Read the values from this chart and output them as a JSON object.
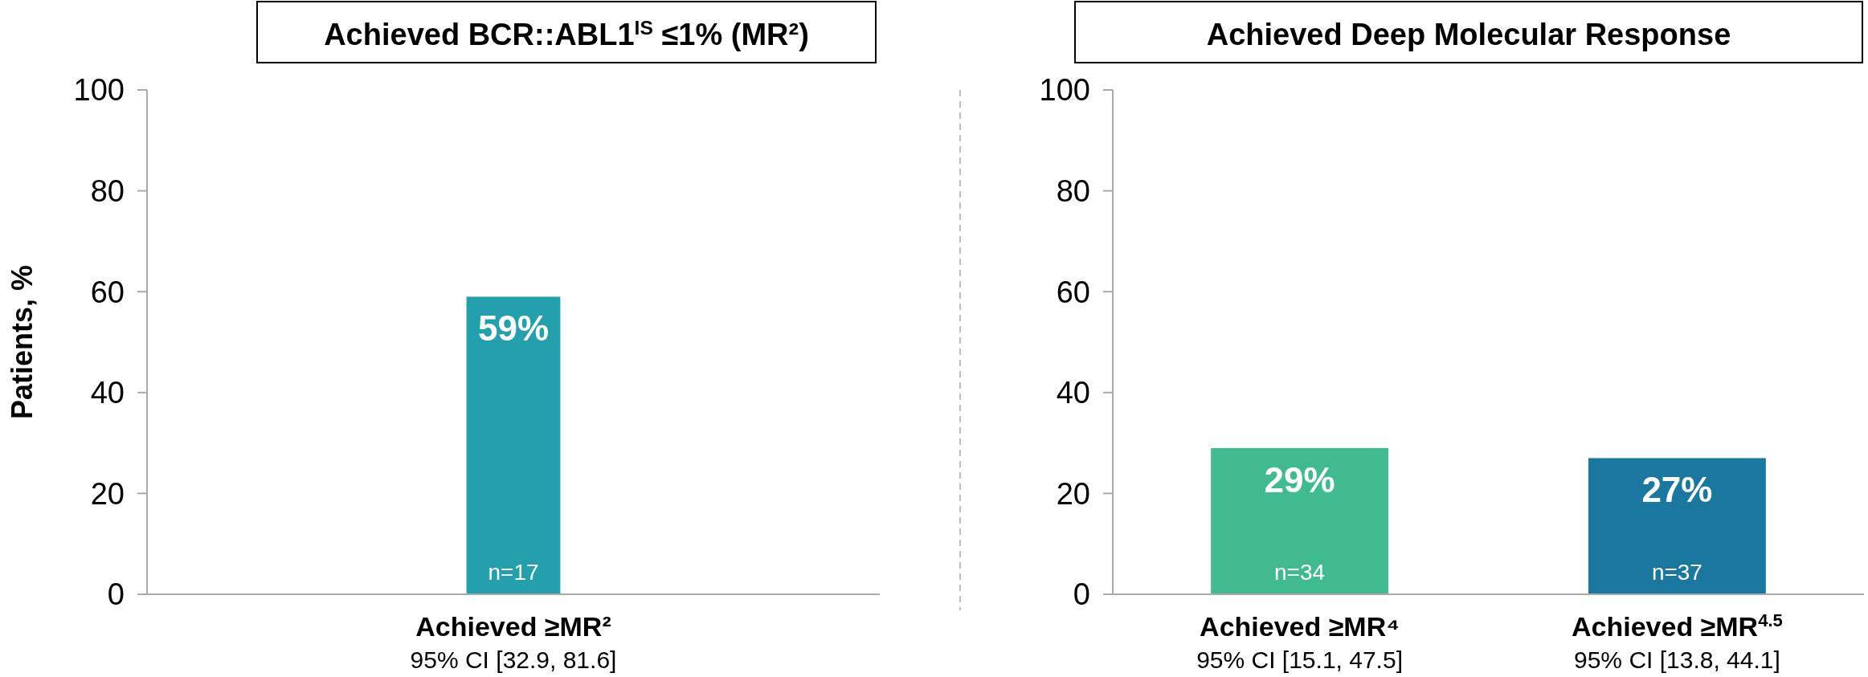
{
  "chart_data": [
    {
      "type": "bar",
      "title": "Achieved BCR::ABL1$^{IS}$ ≤1% (MR²)",
      "ylabel": "Patients, %",
      "categories": [
        "Achieved ≥MR²"
      ],
      "values": [
        59
      ],
      "colors": [
        "#23a0ab"
      ],
      "value_labels": [
        "59%"
      ],
      "ylim": [
        0,
        100
      ],
      "yticks": [
        0,
        20,
        40,
        60,
        80,
        100
      ],
      "grid": false,
      "annotations": [
        {
          "text": "n=17",
          "x": "Achieved ≥MR²",
          "y": 0
        },
        "95% CI [32.9, 81.6]"
      ]
    },
    {
      "type": "bar",
      "title": "Achieved Deep Molecular Response",
      "categories": [
        "Achieved ≥MR⁴",
        "Achieved ≥MR$^{4.5}$"
      ],
      "values": [
        29,
        27
      ],
      "colors": [
        "#40bb90",
        "#1a78a0"
      ],
      "value_labels": [
        "29%",
        "27%"
      ],
      "ylim": [
        0,
        100
      ],
      "yticks": [
        0,
        20,
        40,
        60,
        80,
        100
      ],
      "grid": false,
      "annotations": [
        {
          "text": "n=34",
          "x": "Achieved ≥MR⁴",
          "y": 0
        },
        {
          "text": "n=37",
          "x": "Achieved ≥MR$^{4.5}$",
          "y": 0
        },
        "95% CI [15.1, 47.5]",
        "95% CI [13.8, 44.1]"
      ]
    }
  ]
}
